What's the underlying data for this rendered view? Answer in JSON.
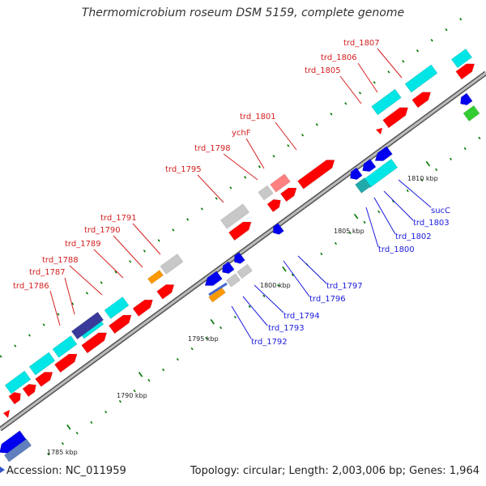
{
  "title": "Thermomicrobium roseum DSM 5159, complete genome",
  "accession": "Accession: NC_011959",
  "summary": "Topology: circular; Length: 2,003,006 bp; Genes: 1,964",
  "colors": {
    "cds_forward": "#ff0000",
    "cds_reverse": "#0000ee",
    "gene_cyan": "#00e5e5",
    "gene_grey": "#c8c8c8",
    "gene_orange": "#ff9900",
    "gene_pink": "#ff8080",
    "gene_navy": "#3a3a9a",
    "gene_green": "#33cc33",
    "backbone": "#888888",
    "tick": "#007700"
  },
  "kbp_labels": [
    "1785 kbp",
    "1790 kbp",
    "1795 kbp",
    "1800 kbp",
    "1805 kbp",
    "1810 kbp"
  ],
  "red_labels": [
    "trd_1786",
    "trd_1787",
    "trd_1788",
    "trd_1789",
    "trd_1790",
    "trd_1791",
    "trd_1795",
    "trd_1798",
    "ychF",
    "trd_1801",
    "trd_1805",
    "trd_1806",
    "trd_1807"
  ],
  "blue_labels": [
    "trd_1792",
    "trd_1793",
    "trd_1794",
    "trd_1796",
    "trd_1797",
    "trd_1800",
    "trd_1802",
    "trd_1803",
    "sucC"
  ]
}
